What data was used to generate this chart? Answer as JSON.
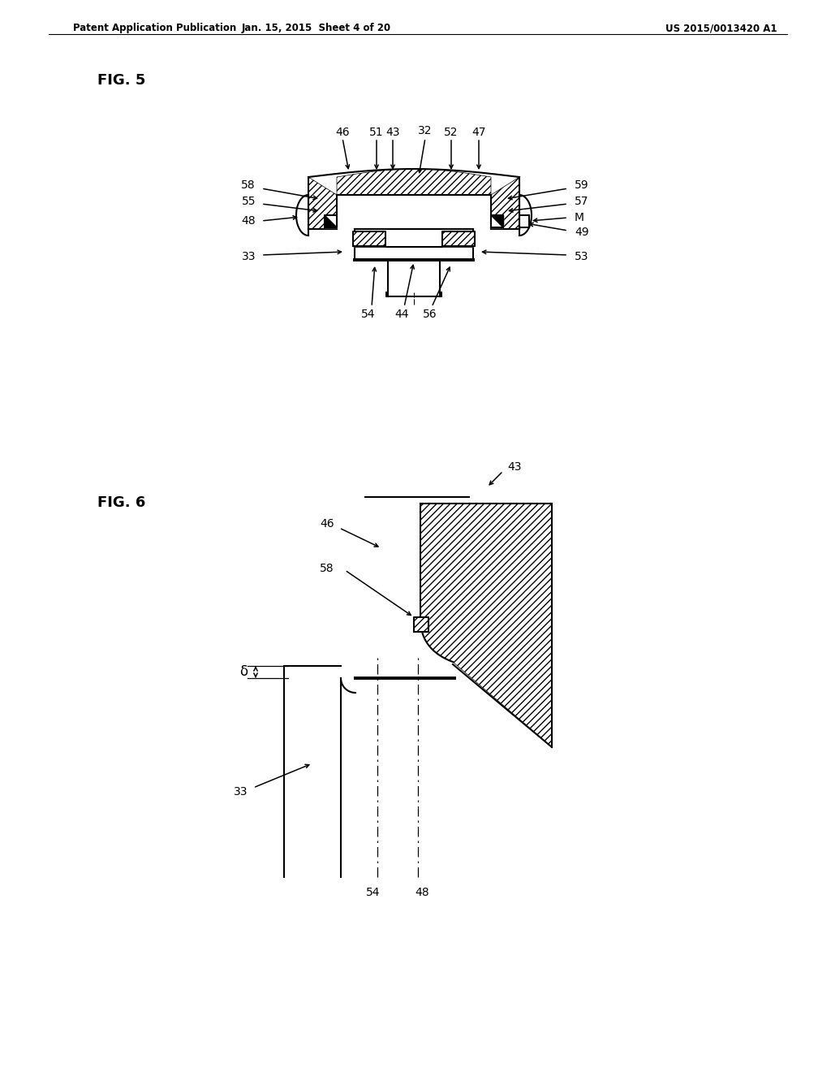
{
  "bg_color": "#ffffff",
  "line_color": "#000000",
  "header_left": "Patent Application Publication",
  "header_center": "Jan. 15, 2015  Sheet 4 of 20",
  "header_right": "US 2015/0013420 A1",
  "fig5_label": "FIG. 5",
  "fig6_label": "FIG. 6"
}
